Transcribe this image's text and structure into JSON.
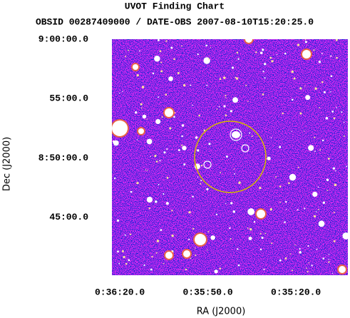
{
  "chart_data": {
    "type": "image",
    "title": "UVOT Finding Chart",
    "subtitle": "OBSID 00287409000 / DATE-OBS 2007-08-10T15:20:25.0",
    "x_label": "RA (J2000)",
    "y_label": "Dec (J2000)",
    "xlim": [
      2182.7,
      2102.3
    ],
    "ylim": [
      31207,
      32400
    ],
    "xticks": [
      {
        "value": 2180,
        "label": "0:36:20.0"
      },
      {
        "value": 2150,
        "label": "0:35:50.0"
      },
      {
        "value": 2120,
        "label": "0:35:20.0"
      }
    ],
    "yticks": [
      {
        "value": 32400,
        "label": "9:00:00.0"
      },
      {
        "value": 32100,
        "label": "55:00.0"
      },
      {
        "value": 31800,
        "label": "8:50:00.0"
      },
      {
        "value": 31500,
        "label": "45:00.0"
      }
    ]
  }
}
